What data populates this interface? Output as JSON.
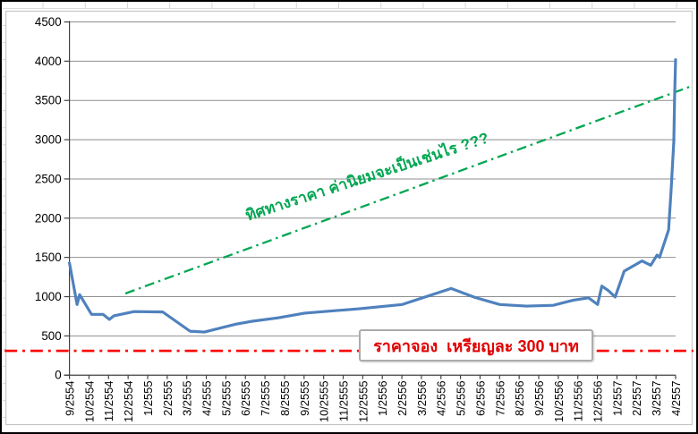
{
  "window": {
    "kind": "spreadsheet embedded chart",
    "background": "#ffffff",
    "outer_border": "#000000"
  },
  "colors": {
    "sheet_gridline": "#d6d6d6",
    "chart_border": "#bfbfbf",
    "plot_gridline": "#8f8f8f",
    "axis": "#404040",
    "axis_label": "#000000",
    "series_blue": "#4F81BD",
    "trend_green": "#00A651",
    "reference_red": "#FB0000",
    "note_text_red": "#E00000",
    "note_box_border": "#ababab",
    "note_box_fill": "#ffffff"
  },
  "chart_data": {
    "type": "line",
    "title": "",
    "xlabel": "",
    "ylabel": "",
    "ylim": [
      0,
      4500
    ],
    "y_ticks": [
      0,
      500,
      1000,
      1500,
      2000,
      2500,
      3000,
      3500,
      4000,
      4500
    ],
    "grid": "horizontal",
    "legend": "none",
    "x_tick_rotation": -90,
    "categories": [
      "9/2554",
      "10/2554",
      "11/2554",
      "12/2554",
      "1/2555",
      "2/2555",
      "3/2555",
      "4/2555",
      "5/2555",
      "6/2555",
      "7/2555",
      "8/2555",
      "9/2555",
      "10/2555",
      "11/2555",
      "12/2555",
      "1/2556",
      "2/2556",
      "3/2556",
      "4/2556",
      "5/2556",
      "6/2556",
      "7/2556",
      "8/2556",
      "9/2556",
      "10/2556",
      "11/2556",
      "12/2556",
      "1/2557",
      "2/2557",
      "3/2557",
      "4/2557"
    ],
    "series": [
      {
        "name": "",
        "color": "#4F81BD",
        "points": [
          [
            0,
            1430
          ],
          [
            0.39,
            900
          ],
          [
            0.52,
            1025
          ],
          [
            1.13,
            775
          ],
          [
            1.72,
            775
          ],
          [
            2.04,
            710
          ],
          [
            2.27,
            755
          ],
          [
            3.31,
            810
          ],
          [
            4.77,
            805
          ],
          [
            6.17,
            560
          ],
          [
            6.9,
            550
          ],
          [
            8.53,
            650
          ],
          [
            9.3,
            685
          ],
          [
            10.67,
            730
          ],
          [
            12.03,
            790
          ],
          [
            14.75,
            845
          ],
          [
            17.02,
            900
          ],
          [
            19.52,
            1105
          ],
          [
            20.74,
            990
          ],
          [
            22.01,
            900
          ],
          [
            23.37,
            880
          ],
          [
            24.74,
            890
          ],
          [
            25.78,
            955
          ],
          [
            26.55,
            985
          ],
          [
            27.01,
            900
          ],
          [
            27.23,
            1135
          ],
          [
            27.55,
            1080
          ],
          [
            27.91,
            995
          ],
          [
            28.37,
            1325
          ],
          [
            29.28,
            1455
          ],
          [
            29.73,
            1400
          ],
          [
            30.05,
            1530
          ],
          [
            30.18,
            1500
          ],
          [
            30.64,
            1850
          ],
          [
            30.77,
            2350
          ],
          [
            30.91,
            2980
          ],
          [
            30.95,
            3550
          ],
          [
            31,
            4020
          ]
        ]
      }
    ],
    "trend_line": {
      "color": "#00A651",
      "style": "dash-dot",
      "start": {
        "x": 2.86,
        "value": 1040
      },
      "end": {
        "x": 31.9,
        "value": 3690
      }
    },
    "reference_line": {
      "color": "#FB0000",
      "style": "dash-dot",
      "value": 310,
      "stated_value": 300
    },
    "annotations": [
      {
        "id": "trend-direction-label",
        "text": "ทิศทางราคา ค่านิยมจะเป็นเช่นไร ???",
        "color": "#00A651",
        "rotation_deg": -18
      },
      {
        "id": "reserve-price-note",
        "text": "ราคาจอง  เหรียญละ 300 บาท",
        "color": "#E00000",
        "boxed": true
      }
    ]
  }
}
